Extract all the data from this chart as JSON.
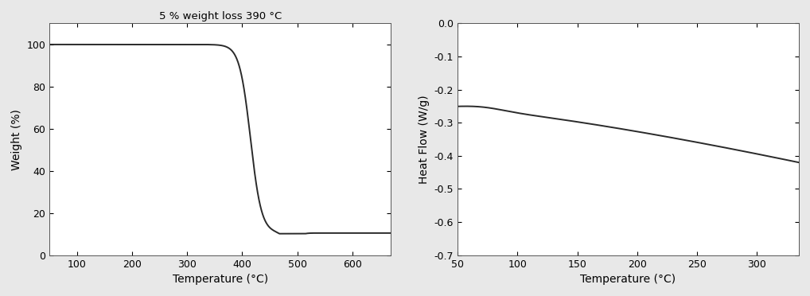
{
  "tga_title": "5 % weight loss 390 °C",
  "tga_xlabel": "Temperature (°C)",
  "tga_ylabel": "Weight (%)",
  "tga_xlim": [
    50,
    670
  ],
  "tga_ylim": [
    0,
    110
  ],
  "tga_xticks": [
    100,
    200,
    300,
    400,
    500,
    600
  ],
  "tga_yticks": [
    0,
    20,
    40,
    60,
    80,
    100
  ],
  "dsc_xlabel": "Temperature (°C)",
  "dsc_ylabel": "Heat Flow (W/g)",
  "dsc_xlim": [
    50,
    335
  ],
  "dsc_ylim": [
    -0.7,
    0.0
  ],
  "dsc_xticks": [
    50,
    100,
    150,
    200,
    250,
    300
  ],
  "dsc_yticks": [
    0.0,
    -0.1,
    -0.2,
    -0.3,
    -0.4,
    -0.5,
    -0.6,
    -0.7
  ],
  "line_color": "#2a2a2a",
  "line_width": 1.4,
  "bg_color": "#e8e8e8",
  "axes_bg_color": "#ffffff",
  "title_fontsize": 9.5,
  "label_fontsize": 10,
  "tick_fontsize": 9
}
